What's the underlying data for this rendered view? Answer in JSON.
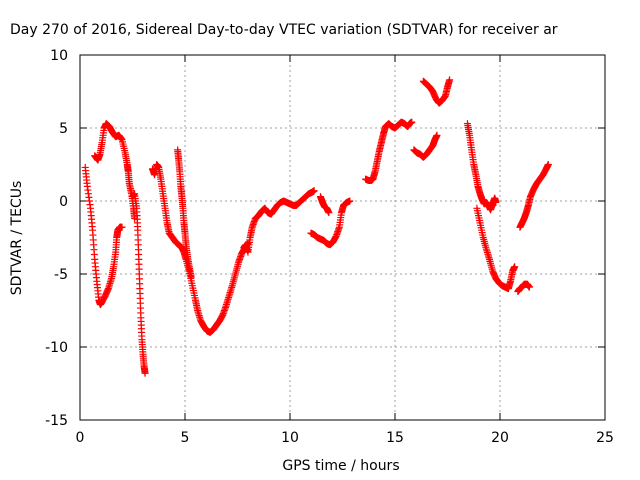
{
  "chart_data": {
    "type": "scatter",
    "title": "Day 270 of 2016, Sidereal Day-to-day VTEC variation (SDTVAR) for receiver ar",
    "xlabel": "GPS time / hours",
    "ylabel": "SDTVAR / TECUs",
    "xlim": [
      0,
      25
    ],
    "ylim": [
      -15,
      10
    ],
    "xticks": [
      0,
      5,
      10,
      15,
      20,
      25
    ],
    "yticks": [
      -15,
      -10,
      -5,
      0,
      5,
      10
    ],
    "grid": true,
    "marker": "+",
    "series": [
      {
        "color": "#ff0000",
        "segments": [
          [
            [
              0.25,
              2.3
            ],
            [
              0.35,
              1.0
            ],
            [
              0.5,
              -0.5
            ],
            [
              0.6,
              -2.0
            ],
            [
              0.7,
              -4.0
            ],
            [
              0.8,
              -5.5
            ],
            [
              0.9,
              -6.8
            ],
            [
              0.97,
              -7.1
            ],
            [
              1.05,
              -6.9
            ],
            [
              1.2,
              -6.5
            ],
            [
              1.35,
              -6.0
            ],
            [
              1.5,
              -5.3
            ],
            [
              1.6,
              -4.5
            ],
            [
              1.7,
              -3.5
            ],
            [
              1.75,
              -2.5
            ],
            [
              1.8,
              -2.0
            ],
            [
              1.9,
              -1.8
            ],
            [
              2.0,
              -1.8
            ]
          ],
          [
            [
              0.7,
              3.1
            ],
            [
              0.85,
              2.8
            ],
            [
              0.95,
              3.2
            ],
            [
              1.05,
              4.0
            ],
            [
              1.15,
              5.0
            ],
            [
              1.25,
              5.3
            ],
            [
              1.4,
              5.1
            ],
            [
              1.55,
              4.7
            ],
            [
              1.7,
              4.4
            ],
            [
              1.85,
              4.5
            ],
            [
              2.0,
              4.2
            ],
            [
              2.15,
              3.3
            ],
            [
              2.25,
              2.5
            ],
            [
              2.3,
              2.0
            ],
            [
              2.35,
              1.2
            ],
            [
              2.45,
              0.5
            ],
            [
              2.55,
              -0.5
            ],
            [
              2.6,
              -1.2
            ]
          ],
          [
            [
              2.5,
              0.3
            ],
            [
              2.6,
              0.5
            ],
            [
              2.7,
              -0.5
            ],
            [
              2.75,
              -2.0
            ],
            [
              2.8,
              -4.0
            ],
            [
              2.85,
              -6.0
            ],
            [
              2.9,
              -8.0
            ],
            [
              2.95,
              -9.5
            ],
            [
              3.0,
              -10.5
            ],
            [
              3.05,
              -11.3
            ],
            [
              3.1,
              -11.8
            ]
          ],
          [
            [
              3.45,
              2.2
            ],
            [
              3.55,
              1.8
            ],
            [
              3.65,
              2.5
            ],
            [
              3.75,
              2.3
            ],
            [
              3.85,
              1.5
            ],
            [
              3.95,
              0.5
            ],
            [
              4.05,
              -0.5
            ],
            [
              4.15,
              -1.5
            ],
            [
              4.25,
              -2.2
            ],
            [
              4.4,
              -2.5
            ],
            [
              4.55,
              -2.8
            ],
            [
              4.7,
              -3.0
            ],
            [
              4.85,
              -3.2
            ],
            [
              4.95,
              -3.5
            ],
            [
              5.05,
              -4.0
            ],
            [
              5.2,
              -4.8
            ],
            [
              5.35,
              -5.8
            ],
            [
              5.5,
              -6.8
            ],
            [
              5.6,
              -7.5
            ],
            [
              5.75,
              -8.2
            ],
            [
              5.9,
              -8.6
            ],
            [
              6.05,
              -8.9
            ],
            [
              6.2,
              -9.0
            ],
            [
              6.35,
              -8.8
            ],
            [
              6.5,
              -8.5
            ],
            [
              6.65,
              -8.2
            ],
            [
              6.8,
              -7.8
            ],
            [
              6.95,
              -7.2
            ],
            [
              7.1,
              -6.5
            ],
            [
              7.25,
              -5.8
            ],
            [
              7.4,
              -5.0
            ],
            [
              7.55,
              -4.2
            ],
            [
              7.7,
              -3.6
            ],
            [
              7.85,
              -3.2
            ],
            [
              8.0,
              -2.9
            ]
          ],
          [
            [
              4.65,
              3.5
            ],
            [
              4.7,
              2.8
            ],
            [
              4.75,
              2.0
            ],
            [
              4.8,
              1.0
            ],
            [
              4.85,
              0.3
            ],
            [
              4.9,
              -0.5
            ],
            [
              4.95,
              -1.5
            ],
            [
              5.0,
              -2.2
            ],
            [
              5.05,
              -3.0
            ],
            [
              5.12,
              -3.8
            ],
            [
              5.2,
              -4.5
            ],
            [
              5.3,
              -5.2
            ]
          ],
          [
            [
              7.8,
              -3.2
            ],
            [
              7.9,
              -3.0
            ],
            [
              8.0,
              -3.5
            ],
            [
              8.1,
              -2.5
            ],
            [
              8.2,
              -1.8
            ],
            [
              8.35,
              -1.2
            ],
            [
              8.5,
              -1.0
            ],
            [
              8.65,
              -0.7
            ],
            [
              8.8,
              -0.5
            ],
            [
              8.95,
              -0.8
            ],
            [
              9.1,
              -0.9
            ],
            [
              9.25,
              -0.6
            ],
            [
              9.4,
              -0.3
            ],
            [
              9.55,
              -0.1
            ],
            [
              9.7,
              0.0
            ],
            [
              9.85,
              -0.1
            ],
            [
              10.0,
              -0.2
            ],
            [
              10.15,
              -0.3
            ],
            [
              10.3,
              -0.3
            ],
            [
              10.45,
              -0.1
            ],
            [
              10.6,
              0.1
            ],
            [
              10.75,
              0.3
            ],
            [
              10.9,
              0.5
            ],
            [
              11.05,
              0.6
            ],
            [
              11.15,
              0.7
            ]
          ],
          [
            [
              11.0,
              -2.2
            ],
            [
              11.15,
              -2.3
            ],
            [
              11.3,
              -2.5
            ],
            [
              11.45,
              -2.6
            ],
            [
              11.6,
              -2.7
            ],
            [
              11.75,
              -2.9
            ],
            [
              11.9,
              -3.0
            ],
            [
              12.05,
              -2.8
            ],
            [
              12.2,
              -2.4
            ],
            [
              12.35,
              -1.8
            ],
            [
              12.45,
              -0.8
            ],
            [
              12.55,
              -0.3
            ],
            [
              12.7,
              -0.1
            ],
            [
              12.85,
              0.0
            ]
          ],
          [
            [
              11.45,
              0.3
            ],
            [
              11.55,
              -0.1
            ],
            [
              11.65,
              -0.4
            ],
            [
              11.75,
              -0.5
            ],
            [
              11.85,
              -0.8
            ]
          ],
          [
            [
              13.6,
              1.5
            ],
            [
              13.75,
              1.4
            ],
            [
              13.85,
              1.4
            ],
            [
              13.95,
              1.5
            ],
            [
              14.05,
              2.0
            ],
            [
              14.15,
              2.7
            ],
            [
              14.25,
              3.4
            ],
            [
              14.35,
              4.0
            ],
            [
              14.45,
              4.6
            ],
            [
              14.55,
              5.1
            ],
            [
              14.7,
              5.3
            ],
            [
              14.85,
              5.1
            ],
            [
              15.0,
              5.0
            ],
            [
              15.15,
              5.2
            ],
            [
              15.3,
              5.4
            ],
            [
              15.45,
              5.3
            ],
            [
              15.6,
              5.1
            ],
            [
              15.7,
              5.3
            ],
            [
              15.8,
              5.4
            ]
          ],
          [
            [
              15.9,
              3.5
            ],
            [
              16.05,
              3.3
            ],
            [
              16.2,
              3.2
            ],
            [
              16.35,
              3.0
            ],
            [
              16.5,
              3.2
            ],
            [
              16.65,
              3.5
            ],
            [
              16.8,
              3.8
            ],
            [
              16.9,
              4.2
            ],
            [
              17.0,
              4.5
            ]
          ],
          [
            [
              16.35,
              8.2
            ],
            [
              16.5,
              8.0
            ],
            [
              16.65,
              7.8
            ],
            [
              16.8,
              7.5
            ],
            [
              16.95,
              7.0
            ],
            [
              17.1,
              6.7
            ],
            [
              17.25,
              6.9
            ],
            [
              17.4,
              7.2
            ],
            [
              17.5,
              7.8
            ],
            [
              17.6,
              8.3
            ]
          ],
          [
            [
              18.45,
              5.3
            ],
            [
              18.55,
              4.5
            ],
            [
              18.65,
              3.5
            ],
            [
              18.75,
              2.5
            ],
            [
              18.85,
              1.8
            ],
            [
              18.95,
              1.0
            ],
            [
              19.05,
              0.5
            ],
            [
              19.15,
              0.1
            ],
            [
              19.25,
              -0.2
            ],
            [
              19.35,
              -0.1
            ],
            [
              19.45,
              -0.3
            ],
            [
              19.55,
              -0.6
            ],
            [
              19.65,
              -0.2
            ],
            [
              19.75,
              0.2
            ],
            [
              19.8,
              -0.1
            ]
          ],
          [
            [
              18.9,
              -0.5
            ],
            [
              19.05,
              -1.5
            ],
            [
              19.2,
              -2.5
            ],
            [
              19.35,
              -3.3
            ],
            [
              19.5,
              -4.0
            ],
            [
              19.65,
              -4.8
            ],
            [
              19.8,
              -5.3
            ],
            [
              19.95,
              -5.6
            ],
            [
              20.1,
              -5.8
            ],
            [
              20.25,
              -5.9
            ],
            [
              20.4,
              -6.0
            ],
            [
              20.5,
              -5.5
            ],
            [
              20.6,
              -4.8
            ],
            [
              20.7,
              -4.5
            ]
          ],
          [
            [
              20.85,
              -6.2
            ],
            [
              20.95,
              -6.0
            ],
            [
              21.05,
              -5.9
            ],
            [
              21.15,
              -5.7
            ],
            [
              21.3,
              -5.7
            ],
            [
              21.4,
              -5.9
            ]
          ],
          [
            [
              20.95,
              -1.8
            ],
            [
              21.05,
              -1.5
            ],
            [
              21.15,
              -1.2
            ],
            [
              21.25,
              -0.8
            ],
            [
              21.35,
              -0.3
            ],
            [
              21.45,
              0.3
            ],
            [
              21.6,
              0.8
            ],
            [
              21.75,
              1.2
            ],
            [
              21.9,
              1.5
            ],
            [
              22.05,
              1.8
            ],
            [
              22.2,
              2.2
            ],
            [
              22.3,
              2.5
            ]
          ]
        ]
      }
    ]
  }
}
